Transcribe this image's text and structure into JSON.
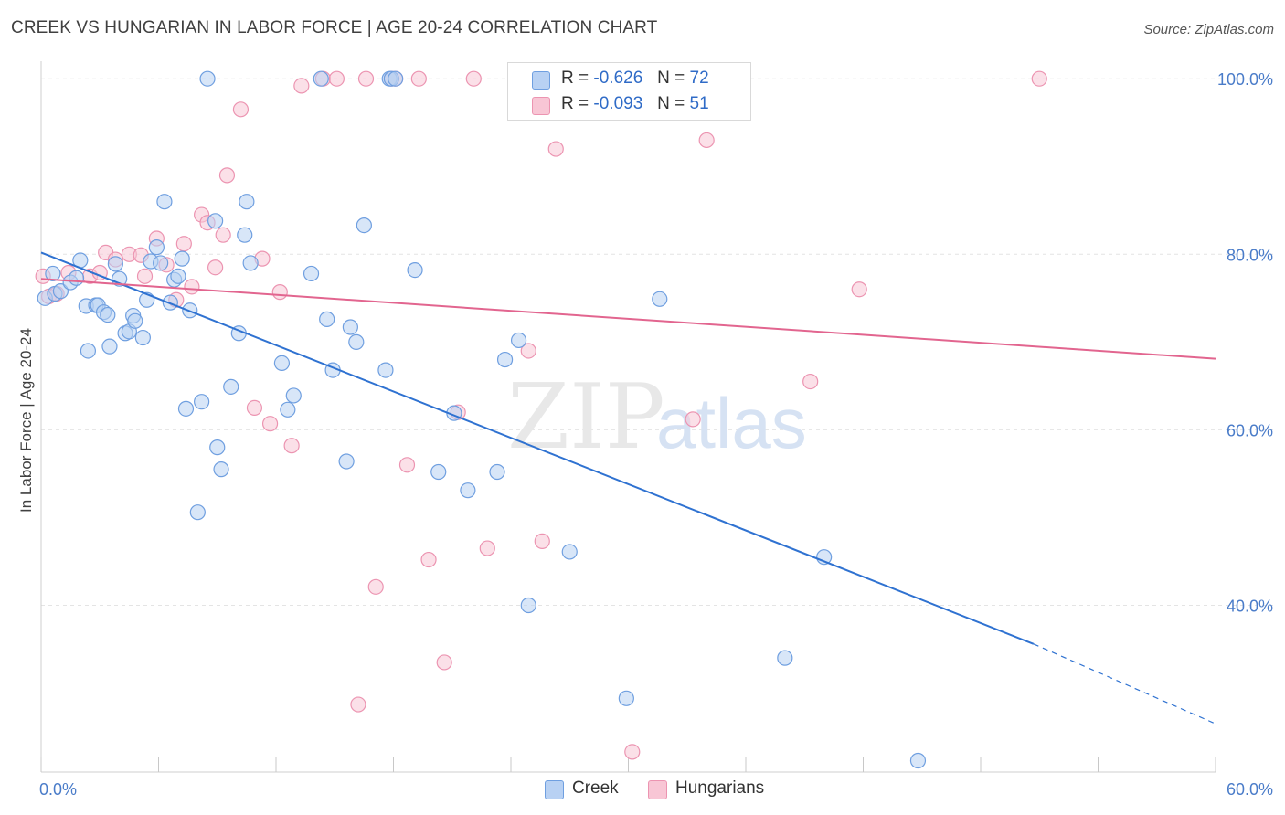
{
  "header": {
    "title": "CREEK VS HUNGARIAN IN LABOR FORCE | AGE 20-24 CORRELATION CHART",
    "source": "Source: ZipAtlas.com"
  },
  "watermark": {
    "zip": "ZIP",
    "atlas": "atlas"
  },
  "legend": {
    "rows": [
      {
        "r_label": "R =",
        "r_value": "-0.626",
        "n_label": "N =",
        "n_value": "72"
      },
      {
        "r_label": "R =",
        "r_value": "-0.093",
        "n_label": "N =",
        "n_value": "51"
      }
    ]
  },
  "bottom_legend": {
    "creek": "Creek",
    "hungarians": "Hungarians"
  },
  "colors": {
    "creek_fill": "#b8d1f3",
    "creek_stroke": "#6f9fe0",
    "creek_line": "#2f72d1",
    "hung_fill": "#f8c6d5",
    "hung_stroke": "#ec94b1",
    "hung_line": "#e2658f",
    "grid": "#e4e4e4",
    "tick_text": "#4a7cc9"
  },
  "chart_data": {
    "type": "scatter",
    "title": "CREEK VS HUNGARIAN IN LABOR FORCE | AGE 20-24 CORRELATION CHART",
    "xlabel": "",
    "ylabel": "In Labor Force | Age 20-24",
    "xlim": [
      0,
      60
    ],
    "ylim": [
      21,
      102
    ],
    "x_tick_labels": [
      "0.0%",
      "60.0%"
    ],
    "y_ticks": [
      40,
      60,
      80,
      100
    ],
    "y_tick_labels": [
      "40.0%",
      "60.0%",
      "80.0%",
      "100.0%"
    ],
    "grid": true,
    "legend_position": "top-center",
    "series": [
      {
        "name": "Creek",
        "R": -0.626,
        "N": 72,
        "trend": {
          "x0": 0,
          "y0": 80.2,
          "x1": 50.7,
          "y1": 35.6,
          "dashed_to_x": 60,
          "dashed_to_y": 26.5
        },
        "points": [
          [
            8.5,
            100
          ],
          [
            14.3,
            100
          ],
          [
            0.2,
            75
          ],
          [
            0.6,
            77.8
          ],
          [
            0.7,
            75.5
          ],
          [
            1.0,
            75.8
          ],
          [
            1.5,
            76.8
          ],
          [
            1.8,
            77.3
          ],
          [
            2.0,
            79.3
          ],
          [
            2.3,
            74.1
          ],
          [
            2.4,
            69
          ],
          [
            2.8,
            74.2
          ],
          [
            2.9,
            74.2
          ],
          [
            3.2,
            73.4
          ],
          [
            3.4,
            73.1
          ],
          [
            3.5,
            69.5
          ],
          [
            3.8,
            78.9
          ],
          [
            4.0,
            77.2
          ],
          [
            4.3,
            71
          ],
          [
            4.5,
            71.2
          ],
          [
            4.7,
            73
          ],
          [
            4.8,
            72.4
          ],
          [
            5.2,
            70.5
          ],
          [
            5.4,
            74.8
          ],
          [
            5.6,
            79.2
          ],
          [
            5.9,
            80.8
          ],
          [
            6.1,
            79
          ],
          [
            6.3,
            86
          ],
          [
            6.6,
            74.5
          ],
          [
            6.8,
            77.1
          ],
          [
            7.0,
            77.5
          ],
          [
            7.2,
            79.5
          ],
          [
            7.4,
            62.4
          ],
          [
            7.6,
            73.6
          ],
          [
            8.0,
            50.6
          ],
          [
            8.2,
            63.2
          ],
          [
            8.9,
            83.8
          ],
          [
            9.0,
            58
          ],
          [
            9.2,
            55.5
          ],
          [
            9.7,
            64.9
          ],
          [
            10.1,
            71
          ],
          [
            10.4,
            82.2
          ],
          [
            10.5,
            86
          ],
          [
            10.7,
            79
          ],
          [
            12.3,
            67.6
          ],
          [
            12.6,
            62.3
          ],
          [
            12.9,
            63.9
          ],
          [
            13.8,
            77.8
          ],
          [
            14.6,
            72.6
          ],
          [
            14.9,
            66.8
          ],
          [
            15.6,
            56.4
          ],
          [
            15.8,
            71.7
          ],
          [
            16.1,
            70
          ],
          [
            16.5,
            83.3
          ],
          [
            17.6,
            66.8
          ],
          [
            19.1,
            78.2
          ],
          [
            20.3,
            55.2
          ],
          [
            21.1,
            61.9
          ],
          [
            21.8,
            53.1
          ],
          [
            23.3,
            55.2
          ],
          [
            23.7,
            68
          ],
          [
            24.4,
            70.2
          ],
          [
            24.9,
            40
          ],
          [
            27.0,
            46.1
          ],
          [
            29.9,
            29.4
          ],
          [
            31.6,
            74.9
          ],
          [
            38.0,
            34
          ],
          [
            40.0,
            45.5
          ],
          [
            44.8,
            22.3
          ],
          [
            17.8,
            100
          ],
          [
            17.9,
            100
          ],
          [
            18.1,
            100
          ]
        ]
      },
      {
        "name": "Hungarians",
        "R": -0.093,
        "N": 51,
        "trend": {
          "x0": 0,
          "y0": 77.2,
          "x1": 60,
          "y1": 68.1
        },
        "points": [
          [
            0.1,
            77.5
          ],
          [
            0.4,
            75.2
          ],
          [
            0.8,
            75.5
          ],
          [
            1.4,
            77.9
          ],
          [
            2.5,
            77.5
          ],
          [
            3.0,
            77.9
          ],
          [
            3.3,
            80.2
          ],
          [
            3.8,
            79.4
          ],
          [
            4.5,
            80
          ],
          [
            5.1,
            79.9
          ],
          [
            5.3,
            77.5
          ],
          [
            5.9,
            81.8
          ],
          [
            6.4,
            78.8
          ],
          [
            6.9,
            74.8
          ],
          [
            7.3,
            81.2
          ],
          [
            7.7,
            76.3
          ],
          [
            8.2,
            84.5
          ],
          [
            8.5,
            83.6
          ],
          [
            8.9,
            78.5
          ],
          [
            9.3,
            82.2
          ],
          [
            9.5,
            89
          ],
          [
            10.2,
            96.5
          ],
          [
            10.9,
            62.5
          ],
          [
            11.3,
            79.5
          ],
          [
            11.7,
            60.7
          ],
          [
            12.2,
            75.7
          ],
          [
            12.8,
            58.2
          ],
          [
            13.3,
            99.2
          ],
          [
            14.4,
            100
          ],
          [
            15.1,
            100
          ],
          [
            16.2,
            28.7
          ],
          [
            16.6,
            100
          ],
          [
            17.1,
            42.1
          ],
          [
            17.9,
            100
          ],
          [
            18.1,
            100
          ],
          [
            18.7,
            56
          ],
          [
            19.3,
            100
          ],
          [
            19.8,
            45.2
          ],
          [
            20.6,
            33.5
          ],
          [
            21.3,
            62
          ],
          [
            22.1,
            100
          ],
          [
            22.8,
            46.5
          ],
          [
            24.9,
            69
          ],
          [
            25.6,
            47.3
          ],
          [
            26.3,
            92
          ],
          [
            30.2,
            23.3
          ],
          [
            33.3,
            61.2
          ],
          [
            34.0,
            93
          ],
          [
            39.3,
            65.5
          ],
          [
            41.8,
            76
          ],
          [
            51.0,
            100
          ]
        ]
      }
    ]
  }
}
